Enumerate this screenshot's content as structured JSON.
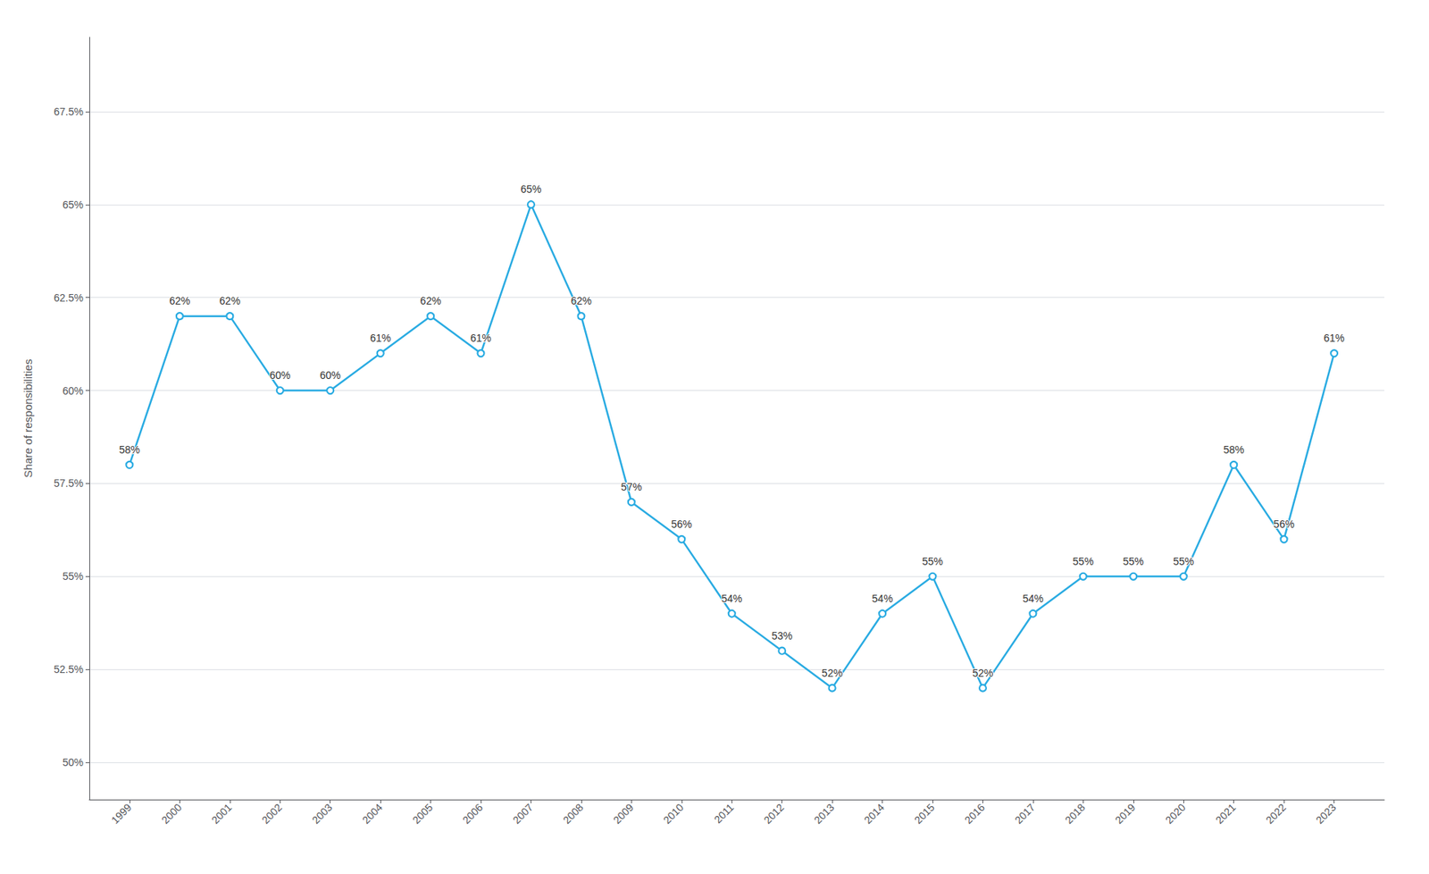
{
  "chart_data": {
    "type": "line",
    "y_label": "Share of responsibilities",
    "x": [
      1999,
      2000,
      2001,
      2002,
      2003,
      2004,
      2005,
      2006,
      2007,
      2008,
      2009,
      2010,
      2011,
      2012,
      2013,
      2014,
      2015,
      2016,
      2017,
      2018,
      2019,
      2020,
      2021,
      2022,
      2023
    ],
    "values": [
      58,
      62,
      62,
      60,
      60,
      61,
      62,
      61,
      65,
      62,
      57,
      56,
      54,
      53,
      52,
      54,
      55,
      52,
      54,
      55,
      55,
      55,
      58,
      56,
      61
    ],
    "value_labels": [
      "58%",
      "62%",
      "62%",
      "60%",
      "60%",
      "61%",
      "62%",
      "61%",
      "65%",
      "62%",
      "57%",
      "56%",
      "54%",
      "53%",
      "52%",
      "54%",
      "55%",
      "52%",
      "54%",
      "55%",
      "55%",
      "55%",
      "58%",
      "56%",
      "61%"
    ],
    "data_labels": true,
    "color": "#29ABE2",
    "marker": "circle",
    "xlim": [
      1998.2,
      2024.0
    ],
    "xticks": [
      1999,
      2000,
      2001,
      2002,
      2003,
      2004,
      2005,
      2006,
      2007,
      2008,
      2009,
      2010,
      2011,
      2012,
      2013,
      2014,
      2015,
      2016,
      2017,
      2018,
      2019,
      2020,
      2021,
      2022,
      2023
    ],
    "ylim": [
      49.0,
      69.5
    ],
    "yticks": [
      {
        "value": 50.0,
        "label": "50%"
      },
      {
        "value": 52.5,
        "label": "52.5%"
      },
      {
        "value": 55.0,
        "label": "55%"
      },
      {
        "value": 57.5,
        "label": "57.5%"
      },
      {
        "value": 60.0,
        "label": "60%"
      },
      {
        "value": 62.5,
        "label": "62.5%"
      },
      {
        "value": 65.0,
        "label": "65%"
      },
      {
        "value": 67.5,
        "label": "67.5%"
      }
    ],
    "grid": true
  }
}
